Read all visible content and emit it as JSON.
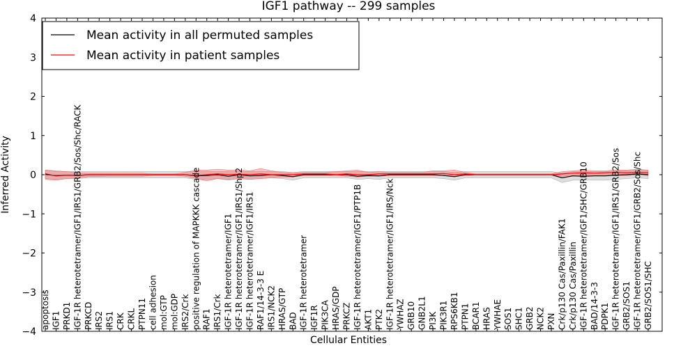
{
  "chart_data": {
    "type": "line",
    "title": "IGF1 pathway -- 299 samples",
    "xlabel": "Cellular Entities",
    "ylabel": "Inferred Activity",
    "ylim": [
      -4,
      4
    ],
    "yticks": [
      "−4",
      "−3",
      "−2",
      "−1",
      "0",
      "1",
      "2",
      "3",
      "4"
    ],
    "grid": false,
    "legend_position": "top-left",
    "categories": [
      "apoptosis",
      "IGF1",
      "PRKD1",
      "IGF-1R heterotetramer/IGF1/IRS1/GRB2/Sos/Shc/RACK",
      "PRKCD",
      "IRS2",
      "IRS1",
      "CRK",
      "CRKL",
      "PTPN11",
      "cell adhesion",
      "mol:GTP",
      "mol:GDP",
      "IRS2/Crk",
      "positive regulation of MAPKKK cascade",
      "RAF1",
      "IRS1/Crk",
      "IGF-1R heterotetramer/IGF1",
      "IGF-1R heterotetramer/IGF1/IRS1/Shp2",
      "IGF-1R heterotetramer/IGF1/IRS1",
      "RAF1/14-3-3 E",
      "IRS1/NCK2",
      "HRAS/GTP",
      "BAD",
      "IGF-1R heterotetramer",
      "IGF1R",
      "PIK3CA",
      "HRAS/GDP",
      "PRKCZ",
      "IGF-1R heterotetramer/IGF1/PTP1B",
      "AKT1",
      "PTK2",
      "IGF-1R heterotetramer/IGF1/IRS/Nck",
      "YWHAZ",
      "GRB10",
      "GNB2L1",
      "PI3K",
      "PIK3R1",
      "RPS6KB1",
      "PTPN1",
      "BCAR1",
      "HRAS",
      "YWHAE",
      "SOS1",
      "SHC1",
      "GRB2",
      "NCK2",
      "PXN",
      "Crk/p130 Cas/Paxillin/FAK1",
      "Crk/p130 Cas/Paxillin",
      "IGF-1R heterotetramer/IGF1/SHC/GRB10",
      "BAD/14-3-3",
      "PDPK1",
      "IGF-1R heterotetramer/IGF1/IRS1/GRB2/Sos",
      "GRB2/SOS1",
      "IGF-1R heterotetramer/IGF1/GRB2/Sos/Shc",
      "GRB2/SOS1/SHC"
    ],
    "series": [
      {
        "name": "Mean activity in all permuted samples",
        "color": "#000000",
        "values": [
          0.02,
          -0.03,
          -0.01,
          -0.02,
          0.0,
          0.0,
          0.0,
          0.0,
          0.0,
          0.0,
          0.0,
          0.0,
          0.0,
          0.0,
          -0.03,
          -0.02,
          0.0,
          -0.04,
          0.0,
          -0.03,
          -0.02,
          0.0,
          -0.02,
          -0.05,
          0.0,
          0.0,
          0.0,
          0.0,
          0.0,
          -0.04,
          -0.02,
          -0.03,
          0.0,
          0.0,
          0.0,
          0.0,
          0.0,
          -0.02,
          -0.05,
          0.0,
          0.0,
          0.0,
          0.0,
          0.0,
          0.0,
          0.0,
          0.0,
          0.0,
          -0.08,
          -0.03,
          -0.04,
          -0.03,
          -0.03,
          -0.01,
          0.0,
          0.02,
          0.0
        ],
        "band_low": [
          -0.1,
          -0.12,
          -0.1,
          -0.1,
          -0.08,
          -0.08,
          -0.08,
          -0.08,
          -0.08,
          -0.08,
          -0.08,
          -0.08,
          -0.08,
          -0.08,
          -0.12,
          -0.12,
          -0.1,
          -0.14,
          -0.1,
          -0.12,
          -0.1,
          -0.08,
          -0.1,
          -0.14,
          -0.08,
          -0.08,
          -0.08,
          -0.08,
          -0.08,
          -0.12,
          -0.1,
          -0.12,
          -0.08,
          -0.08,
          -0.08,
          -0.08,
          -0.08,
          -0.1,
          -0.14,
          -0.08,
          -0.08,
          -0.08,
          -0.08,
          -0.08,
          -0.08,
          -0.08,
          -0.08,
          -0.08,
          -0.2,
          -0.14,
          -0.14,
          -0.14,
          -0.14,
          -0.12,
          -0.1,
          -0.08,
          -0.1
        ],
        "band_high": [
          0.12,
          0.08,
          0.08,
          0.08,
          0.08,
          0.08,
          0.08,
          0.08,
          0.08,
          0.08,
          0.08,
          0.08,
          0.08,
          0.08,
          0.08,
          0.08,
          0.08,
          0.08,
          0.08,
          0.08,
          0.08,
          0.08,
          0.08,
          0.06,
          0.08,
          0.08,
          0.08,
          0.08,
          0.08,
          0.08,
          0.08,
          0.08,
          0.08,
          0.08,
          0.08,
          0.08,
          0.08,
          0.08,
          0.06,
          0.08,
          0.08,
          0.08,
          0.08,
          0.08,
          0.08,
          0.08,
          0.08,
          0.08,
          0.04,
          0.08,
          0.08,
          0.08,
          0.08,
          0.1,
          0.1,
          0.12,
          0.1
        ]
      },
      {
        "name": "Mean activity in patient samples",
        "color": "#ff0000",
        "values": [
          0.0,
          -0.02,
          -0.01,
          -0.02,
          0.0,
          0.0,
          0.0,
          0.0,
          0.0,
          0.0,
          0.0,
          0.0,
          0.0,
          0.0,
          -0.02,
          0.0,
          0.02,
          0.0,
          0.01,
          0.0,
          0.02,
          0.0,
          0.0,
          0.0,
          0.02,
          0.02,
          0.02,
          0.0,
          0.02,
          0.0,
          0.0,
          0.02,
          0.02,
          0.02,
          0.02,
          0.02,
          0.02,
          0.03,
          0.0,
          0.02,
          0.0,
          0.0,
          0.0,
          0.0,
          0.0,
          0.0,
          0.0,
          0.0,
          0.02,
          0.04,
          0.05,
          0.04,
          0.05,
          0.06,
          0.05,
          0.06,
          0.05
        ],
        "band_low": [
          -0.12,
          -0.14,
          -0.1,
          -0.08,
          -0.05,
          -0.05,
          -0.04,
          -0.04,
          -0.04,
          -0.04,
          -0.02,
          -0.02,
          -0.02,
          -0.04,
          -0.1,
          -0.16,
          -0.1,
          -0.12,
          -0.1,
          -0.12,
          -0.1,
          -0.08,
          -0.06,
          -0.06,
          -0.02,
          -0.02,
          -0.02,
          -0.02,
          -0.04,
          -0.06,
          -0.04,
          -0.04,
          -0.02,
          -0.02,
          -0.02,
          -0.02,
          -0.02,
          -0.02,
          -0.04,
          -0.02,
          -0.01,
          -0.01,
          -0.01,
          -0.01,
          -0.01,
          -0.01,
          -0.01,
          -0.01,
          -0.04,
          -0.02,
          -0.02,
          -0.02,
          -0.02,
          -0.02,
          -0.02,
          -0.01,
          -0.02
        ],
        "band_high": [
          0.12,
          0.1,
          0.08,
          0.05,
          0.04,
          0.04,
          0.04,
          0.04,
          0.04,
          0.04,
          0.02,
          0.02,
          0.02,
          0.06,
          0.12,
          0.12,
          0.14,
          0.12,
          0.12,
          0.1,
          0.16,
          0.1,
          0.06,
          0.04,
          0.06,
          0.06,
          0.06,
          0.08,
          0.1,
          0.12,
          0.06,
          0.08,
          0.06,
          0.06,
          0.06,
          0.06,
          0.1,
          0.1,
          0.12,
          0.06,
          0.02,
          0.02,
          0.02,
          0.02,
          0.02,
          0.02,
          0.02,
          0.02,
          0.08,
          0.1,
          0.12,
          0.1,
          0.1,
          0.12,
          0.12,
          0.14,
          0.12
        ]
      }
    ]
  }
}
